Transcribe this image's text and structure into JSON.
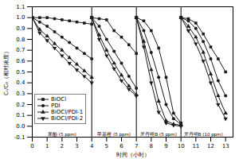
{
  "chart_data": {
    "type": "line",
    "xlabel": "时间（小时）",
    "ylabel": "Cₜ/C₀（相对浓度）",
    "color": "#1a1a1a",
    "xlim": [
      0.0,
      13.5
    ],
    "ylim": [
      -0.1,
      1.1
    ],
    "xticks": [
      0,
      1,
      2,
      3,
      4,
      5,
      6,
      7,
      8,
      9,
      10,
      11,
      12,
      13
    ],
    "yticks": [
      -0.1,
      {
        "value": 0.0,
        "label": "0.0"
      },
      0.1,
      0.2,
      0.3,
      0.4,
      0.5,
      0.6,
      0.7,
      0.8,
      0.9,
      {
        "value": 1.0,
        "label": "1.0"
      },
      1.1
    ],
    "grid": false,
    "legend": "lower left",
    "vlines": [
      4.0,
      7.0,
      10.0
    ],
    "annotations": [
      {
        "text": "苯酚 (5 ppm)",
        "x": 2.0,
        "y": -0.06
      },
      {
        "text": "甲基橙 (5 ppm)",
        "x": 5.5,
        "y": -0.06
      },
      {
        "text": "罗丹明B (5 ppm)",
        "x": 8.5,
        "y": -0.06
      },
      {
        "text": "罗丹明B (10 ppm)",
        "x": 11.5,
        "y": -0.06
      }
    ],
    "x": [
      0.0,
      0.5,
      1.0,
      1.5,
      2.0,
      2.5,
      3.0,
      3.5,
      4.0,
      null,
      4.0,
      4.5,
      5.0,
      5.5,
      6.0,
      6.5,
      7.0,
      null,
      7.0,
      7.5,
      8.0,
      8.5,
      9.0,
      9.5,
      10.0,
      null,
      10.0,
      10.5,
      11.0,
      11.5,
      12.0,
      12.5,
      13.0
    ],
    "series": [
      {
        "name": "BiOCl",
        "marker": "square",
        "values": [
          1.0,
          1.0,
          1.0,
          0.99,
          0.98,
          0.97,
          0.96,
          0.95,
          0.94,
          null,
          1.0,
          0.99,
          0.98,
          0.88,
          0.82,
          0.75,
          0.67,
          null,
          1.0,
          0.97,
          0.88,
          0.72,
          0.45,
          0.12,
          0.03,
          null,
          1.0,
          0.99,
          0.95,
          0.85,
          0.73,
          0.62,
          0.5
        ]
      },
      {
        "name": "PDI",
        "marker": "circle",
        "values": [
          1.0,
          0.96,
          0.92,
          0.87,
          0.82,
          0.77,
          0.72,
          0.67,
          0.62,
          null,
          1.0,
          0.92,
          0.8,
          0.69,
          0.58,
          0.46,
          0.35,
          null,
          1.0,
          0.88,
          0.68,
          0.45,
          0.2,
          0.07,
          0.02,
          null,
          1.0,
          0.97,
          0.9,
          0.78,
          0.62,
          0.42,
          0.28
        ]
      },
      {
        "name": "BiOCl/PDI-1",
        "marker": "triangle-up",
        "values": [
          1.0,
          0.89,
          0.83,
          0.76,
          0.7,
          0.63,
          0.57,
          0.51,
          0.45,
          null,
          1.0,
          0.84,
          0.7,
          0.58,
          0.47,
          0.37,
          0.29,
          null,
          1.0,
          0.78,
          0.52,
          0.23,
          0.05,
          0.02,
          0.01,
          null,
          1.0,
          0.92,
          0.82,
          0.68,
          0.48,
          0.28,
          0.12
        ]
      },
      {
        "name": "BiOCl/PDI-2",
        "marker": "triangle-down",
        "values": [
          1.0,
          0.86,
          0.79,
          0.72,
          0.65,
          0.58,
          0.52,
          0.46,
          0.4,
          null,
          1.0,
          0.8,
          0.65,
          0.53,
          0.42,
          0.34,
          0.28,
          null,
          1.0,
          0.73,
          0.4,
          0.13,
          0.03,
          0.01,
          0.0,
          null,
          1.0,
          0.88,
          0.76,
          0.6,
          0.4,
          0.2,
          0.07
        ]
      }
    ]
  }
}
